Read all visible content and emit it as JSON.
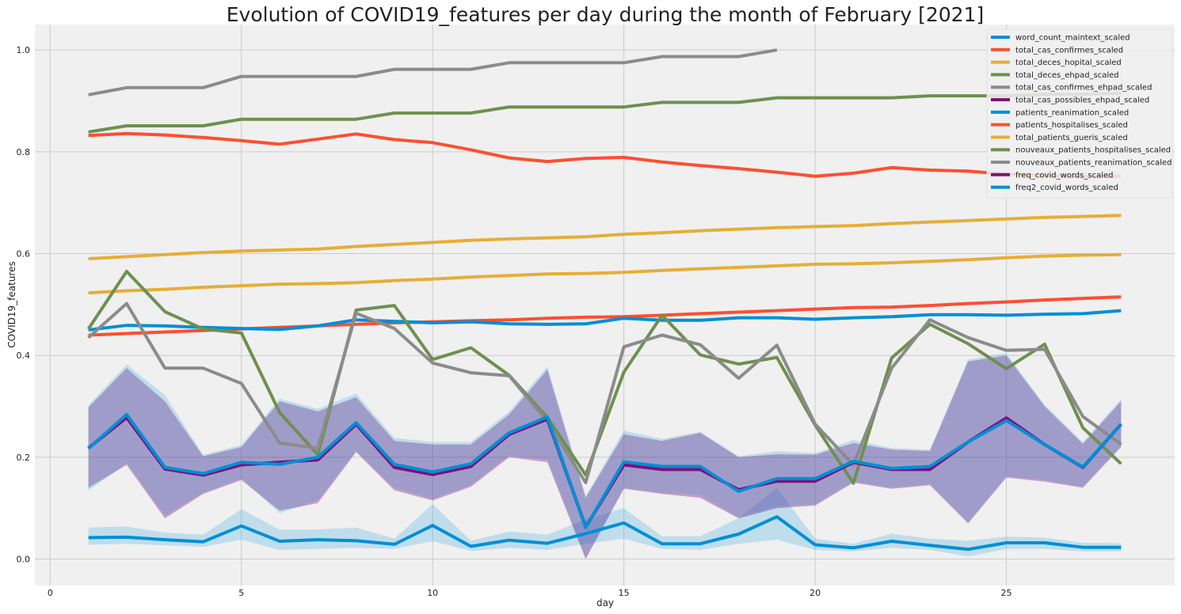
{
  "chart_data": {
    "type": "line",
    "title": "Evolution of COVID19_features per day during the month of February  [2021]",
    "xlabel": "day",
    "ylabel": "COVID19_features",
    "xlim": [
      -0.4,
      29.4
    ],
    "ylim": [
      -0.052,
      1.05
    ],
    "xticks": [
      0,
      5,
      10,
      15,
      20,
      25
    ],
    "xtick_labels": [
      "0",
      "5",
      "10",
      "15",
      "20",
      "25"
    ],
    "yticks": [
      0.0,
      0.2,
      0.4,
      0.6,
      0.8,
      1.0
    ],
    "ytick_labels": [
      "0.0",
      "0.2",
      "0.4",
      "0.6",
      "0.8",
      "1.0"
    ],
    "grid": true,
    "legend_position": "top-right",
    "x": [
      1,
      2,
      3,
      4,
      5,
      6,
      7,
      8,
      9,
      10,
      11,
      12,
      13,
      14,
      15,
      16,
      17,
      18,
      19,
      20,
      21,
      22,
      23,
      24,
      25,
      26,
      27,
      28
    ],
    "series": [
      {
        "name": "word_count_maintext_scaled",
        "color": "#008fd5",
        "values": [
          0.042,
          0.043,
          0.038,
          0.034,
          0.065,
          0.035,
          0.038,
          0.036,
          0.029,
          0.066,
          0.025,
          0.037,
          0.031,
          0.05,
          0.071,
          0.03,
          0.03,
          0.049,
          0.083,
          0.028,
          0.022,
          0.035,
          0.027,
          0.019,
          0.032,
          0.032,
          0.023,
          0.023
        ],
        "band_lower": [
          0.028,
          0.03,
          0.027,
          0.024,
          0.038,
          0.018,
          0.02,
          0.022,
          0.02,
          0.035,
          0.016,
          0.022,
          0.018,
          0.03,
          0.04,
          0.02,
          0.018,
          0.03,
          0.038,
          0.018,
          0.015,
          0.022,
          0.018,
          0.005,
          0.02,
          0.02,
          0.015,
          0.015
        ],
        "band_upper": [
          0.062,
          0.064,
          0.052,
          0.048,
          0.098,
          0.058,
          0.058,
          0.062,
          0.04,
          0.108,
          0.036,
          0.054,
          0.048,
          0.078,
          0.1,
          0.045,
          0.045,
          0.08,
          0.14,
          0.04,
          0.03,
          0.05,
          0.04,
          0.036,
          0.044,
          0.042,
          0.032,
          0.031
        ]
      },
      {
        "name": "total_cas_confirmes_scaled",
        "color": "#fc4f30",
        "values": [
          0.44,
          0.443,
          0.446,
          0.449,
          0.452,
          0.455,
          0.458,
          0.461,
          0.464,
          0.466,
          0.468,
          0.47,
          0.473,
          0.475,
          0.476,
          0.479,
          0.482,
          0.485,
          0.488,
          0.491,
          0.494,
          0.495,
          0.498,
          0.502,
          0.505,
          0.509,
          0.512,
          0.515
        ]
      },
      {
        "name": "total_deces_hopital_scaled",
        "color": "#e5ae38",
        "values": [
          0.59,
          0.594,
          0.598,
          0.602,
          0.605,
          0.607,
          0.609,
          0.614,
          0.618,
          0.622,
          0.626,
          0.629,
          0.631,
          0.633,
          0.638,
          0.641,
          0.645,
          0.648,
          0.651,
          0.653,
          0.655,
          0.659,
          0.662,
          0.665,
          0.668,
          0.671,
          0.673,
          0.675
        ]
      },
      {
        "name": "total_deces_ehpad_scaled",
        "color": "#6d904f",
        "values": [
          0.839,
          0.851,
          0.851,
          0.851,
          0.864,
          0.864,
          0.864,
          0.864,
          0.876,
          0.876,
          0.876,
          0.888,
          0.888,
          0.888,
          0.888,
          0.897,
          0.897,
          0.897,
          0.906,
          0.906,
          0.906,
          0.906,
          0.91,
          0.91,
          0.91,
          0.913,
          0.913,
          0.915
        ]
      },
      {
        "name": "total_cas_confirmes_ehpad_scaled",
        "color": "#8b8b8b",
        "values": [
          0.912,
          0.926,
          0.926,
          0.926,
          0.948,
          0.948,
          0.948,
          0.948,
          0.962,
          0.962,
          0.962,
          0.975,
          0.975,
          0.975,
          0.975,
          0.987,
          0.987,
          0.987,
          1.0,
          null,
          null,
          null,
          null,
          null,
          null,
          null,
          null,
          null
        ]
      },
      {
        "name": "total_cas_possibles_ehpad_scaled",
        "color": "#810f7c",
        "values": [
          0.218,
          0.278,
          0.177,
          0.165,
          0.185,
          0.19,
          0.195,
          0.265,
          0.18,
          0.166,
          0.182,
          0.245,
          0.275,
          0.063,
          0.185,
          0.176,
          0.176,
          0.136,
          0.153,
          0.153,
          0.19,
          0.176,
          0.176,
          0.23,
          0.277,
          0.225,
          0.18,
          0.265
        ],
        "band_lower": [
          0.14,
          0.185,
          0.08,
          0.128,
          0.155,
          0.095,
          0.11,
          0.21,
          0.135,
          0.115,
          0.142,
          0.2,
          0.19,
          0.0,
          0.138,
          0.128,
          0.12,
          0.08,
          0.1,
          0.105,
          0.15,
          0.138,
          0.145,
          0.07,
          0.16,
          0.152,
          0.14,
          0.22
        ],
        "band_upper": [
          0.298,
          0.375,
          0.31,
          0.202,
          0.22,
          0.31,
          0.29,
          0.318,
          0.232,
          0.225,
          0.225,
          0.284,
          0.372,
          0.12,
          0.245,
          0.232,
          0.248,
          0.2,
          0.206,
          0.205,
          0.228,
          0.215,
          0.212,
          0.388,
          0.4,
          0.3,
          0.226,
          0.31
        ]
      },
      {
        "name": "patients_reanimation_scaled",
        "color": "#008fd5",
        "values": [
          0.45,
          0.459,
          0.458,
          0.455,
          0.453,
          0.451,
          0.458,
          0.47,
          0.467,
          0.464,
          0.466,
          0.462,
          0.461,
          0.462,
          0.473,
          0.469,
          0.469,
          0.474,
          0.474,
          0.471,
          0.474,
          0.476,
          0.48,
          0.48,
          0.479,
          0.481,
          0.482,
          0.488
        ]
      },
      {
        "name": "patients_hospitalises_scaled",
        "color": "#fc4f30",
        "values": [
          0.832,
          0.836,
          0.833,
          0.828,
          0.822,
          0.815,
          0.825,
          0.835,
          0.824,
          0.818,
          0.804,
          0.788,
          0.781,
          0.787,
          0.789,
          0.78,
          0.773,
          0.767,
          0.76,
          0.752,
          0.758,
          0.769,
          0.764,
          0.762,
          0.756,
          0.753,
          0.751,
          0.752
        ]
      },
      {
        "name": "total_patients_gueris_scaled",
        "color": "#e5ae38",
        "values": [
          0.523,
          0.527,
          0.53,
          0.534,
          0.537,
          0.54,
          0.541,
          0.543,
          0.547,
          0.55,
          0.554,
          0.557,
          0.56,
          0.561,
          0.563,
          0.567,
          0.57,
          0.573,
          0.576,
          0.579,
          0.58,
          0.582,
          0.585,
          0.588,
          0.592,
          0.595,
          0.597,
          0.598
        ]
      },
      {
        "name": "nouveaux_patients_hospitalises_scaled",
        "color": "#6d904f",
        "values": [
          0.452,
          0.565,
          0.486,
          0.452,
          0.444,
          0.288,
          0.205,
          0.489,
          0.498,
          0.392,
          0.415,
          0.361,
          0.278,
          0.165,
          0.367,
          0.479,
          0.401,
          0.383,
          0.396,
          0.263,
          0.149,
          0.395,
          0.461,
          0.423,
          0.374,
          0.422,
          0.258,
          0.187
        ]
      },
      {
        "name": "nouveaux_patients_reanimation_scaled",
        "color": "#8b8b8b",
        "values": [
          0.435,
          0.502,
          0.375,
          0.375,
          0.345,
          0.228,
          0.218,
          0.483,
          0.453,
          0.385,
          0.366,
          0.36,
          0.27,
          0.15,
          0.417,
          0.44,
          0.421,
          0.355,
          0.42,
          0.265,
          0.185,
          0.375,
          0.47,
          0.435,
          0.41,
          0.412,
          0.28,
          0.225
        ]
      },
      {
        "name": "freq_covid_words_scaled",
        "color": "#810f7c",
        "values": [
          0.218,
          0.278,
          0.177,
          0.165,
          0.185,
          0.19,
          0.195,
          0.265,
          0.18,
          0.166,
          0.182,
          0.245,
          0.275,
          0.063,
          0.185,
          0.176,
          0.176,
          0.136,
          0.153,
          0.153,
          0.19,
          0.176,
          0.176,
          0.23,
          0.277,
          0.225,
          0.18,
          0.265
        ],
        "band_lower": [
          0.14,
          0.185,
          0.08,
          0.128,
          0.155,
          0.095,
          0.11,
          0.21,
          0.135,
          0.115,
          0.142,
          0.2,
          0.19,
          0.0,
          0.138,
          0.128,
          0.12,
          0.08,
          0.1,
          0.105,
          0.15,
          0.138,
          0.145,
          0.07,
          0.16,
          0.152,
          0.14,
          0.22
        ],
        "band_upper": [
          0.298,
          0.375,
          0.31,
          0.202,
          0.22,
          0.31,
          0.29,
          0.318,
          0.232,
          0.225,
          0.225,
          0.284,
          0.372,
          0.12,
          0.245,
          0.232,
          0.248,
          0.2,
          0.206,
          0.205,
          0.228,
          0.215,
          0.212,
          0.388,
          0.4,
          0.3,
          0.226,
          0.31
        ]
      },
      {
        "name": "freq2_covid_words_scaled",
        "color": "#008fd5",
        "values": [
          0.217,
          0.284,
          0.18,
          0.168,
          0.19,
          0.186,
          0.2,
          0.268,
          0.186,
          0.171,
          0.187,
          0.248,
          0.279,
          0.062,
          0.191,
          0.182,
          0.182,
          0.133,
          0.158,
          0.158,
          0.192,
          0.178,
          0.182,
          0.23,
          0.272,
          0.225,
          0.181,
          0.265
        ],
        "band_lower": [
          0.134,
          0.188,
          0.085,
          0.13,
          0.158,
          0.09,
          0.115,
          0.212,
          0.14,
          0.118,
          0.145,
          0.203,
          0.195,
          0.002,
          0.14,
          0.13,
          0.125,
          0.082,
          0.103,
          0.108,
          0.152,
          0.14,
          0.148,
          0.072,
          0.162,
          0.155,
          0.142,
          0.222
        ],
        "band_upper": [
          0.302,
          0.382,
          0.322,
          0.205,
          0.224,
          0.315,
          0.295,
          0.325,
          0.238,
          0.23,
          0.23,
          0.29,
          0.378,
          0.124,
          0.252,
          0.236,
          0.25,
          0.202,
          0.212,
          0.208,
          0.234,
          0.218,
          0.215,
          0.392,
          0.404,
          0.303,
          0.23,
          0.314
        ]
      }
    ]
  }
}
